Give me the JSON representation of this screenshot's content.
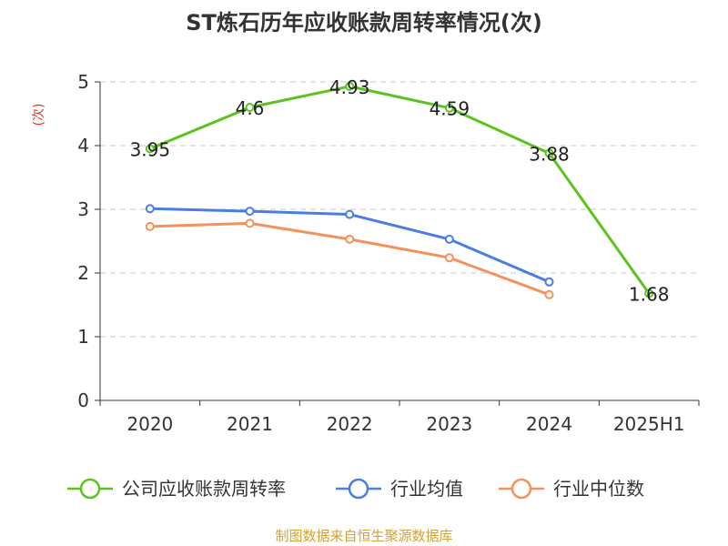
{
  "chart_data": {
    "type": "line",
    "title": "ST炼石历年应收账款周转率情况(次)",
    "ylabel": "(次)",
    "xlabel": "",
    "categories": [
      "2020",
      "2021",
      "2022",
      "2023",
      "2024",
      "2025H1"
    ],
    "ylim": [
      0,
      5
    ],
    "yticks": [
      0,
      1,
      2,
      3,
      4,
      5
    ],
    "grid": true,
    "legend_position": "bottom",
    "series": [
      {
        "name": "公司应收账款周转率",
        "color": "#5cc31e",
        "values": [
          3.95,
          4.6,
          4.93,
          4.59,
          3.88,
          1.68
        ],
        "labels": [
          "3.95",
          "4.6",
          "4.93",
          "4.59",
          "3.88",
          "1.68"
        ]
      },
      {
        "name": "行业均值",
        "color": "#4a7fe0",
        "values": [
          3.01,
          2.97,
          2.92,
          2.53,
          1.86,
          null
        ]
      },
      {
        "name": "行业中位数",
        "color": "#f5915a",
        "values": [
          2.73,
          2.78,
          2.53,
          2.24,
          1.66,
          null
        ]
      }
    ]
  },
  "source_text": "制图数据来自恒生聚源数据库"
}
